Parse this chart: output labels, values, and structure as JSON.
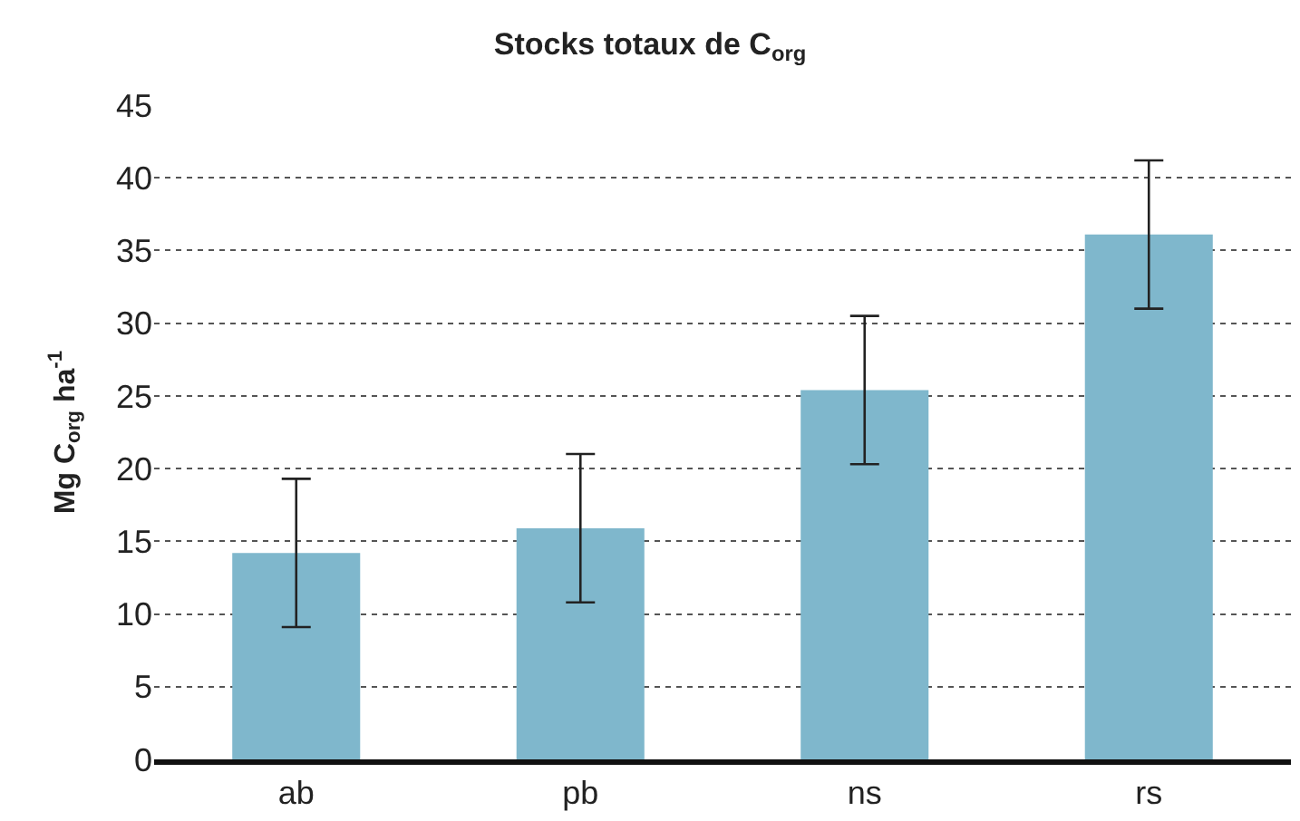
{
  "chart_data": {
    "type": "bar",
    "title": "Stocks totaux de C$_{org}$",
    "ylabel": "Mg C$_{org}$ ha$^{-1}$",
    "categories": [
      "ab",
      "pb",
      "ns",
      "rs"
    ],
    "values": [
      14.2,
      15.9,
      25.4,
      36.1
    ],
    "errors": [
      5.1,
      5.1,
      5.1,
      5.1
    ],
    "color": "#7fb7cc",
    "ylim": [
      0,
      45
    ],
    "yticks": [
      0,
      5,
      10,
      15,
      20,
      25,
      30,
      35,
      40,
      45
    ],
    "grid": "y"
  }
}
